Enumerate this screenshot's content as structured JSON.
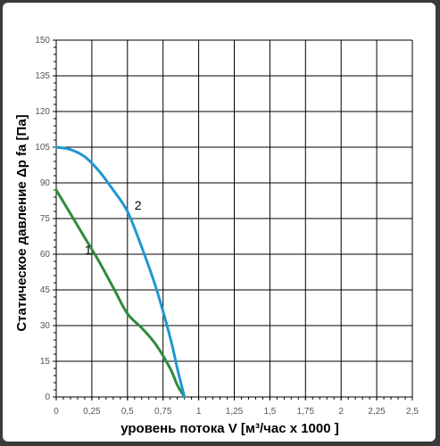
{
  "chart_data": {
    "type": "line",
    "xlabel": "уровень потока  V [м³/час x 1000 ]",
    "ylabel": "Статическое давление  Δp fa [Па]",
    "xlim": [
      0,
      2.5
    ],
    "ylim": [
      0,
      150
    ],
    "x_ticks": [
      "0",
      "0,25",
      "0,5",
      "0,75",
      "1",
      "1,25",
      "1,5",
      "1,75",
      "2",
      "2,25",
      "2,5"
    ],
    "y_ticks": [
      "0",
      "15",
      "30",
      "45",
      "60",
      "75",
      "90",
      "105",
      "120",
      "135",
      "150"
    ],
    "grid": true,
    "series": [
      {
        "name": "1",
        "color": "#2e8b3e",
        "x": [
          0.0,
          0.1,
          0.2,
          0.3,
          0.4,
          0.5,
          0.6,
          0.7,
          0.8,
          0.85,
          0.9
        ],
        "y": [
          87,
          77,
          67,
          57,
          46,
          35,
          29,
          22,
          12,
          5,
          0
        ]
      },
      {
        "name": "2",
        "color": "#1f97d0",
        "x": [
          0.0,
          0.1,
          0.2,
          0.3,
          0.4,
          0.5,
          0.6,
          0.7,
          0.8,
          0.85,
          0.9
        ],
        "y": [
          105,
          104,
          101,
          95,
          87,
          78,
          63,
          46,
          25,
          12,
          0
        ]
      }
    ]
  }
}
